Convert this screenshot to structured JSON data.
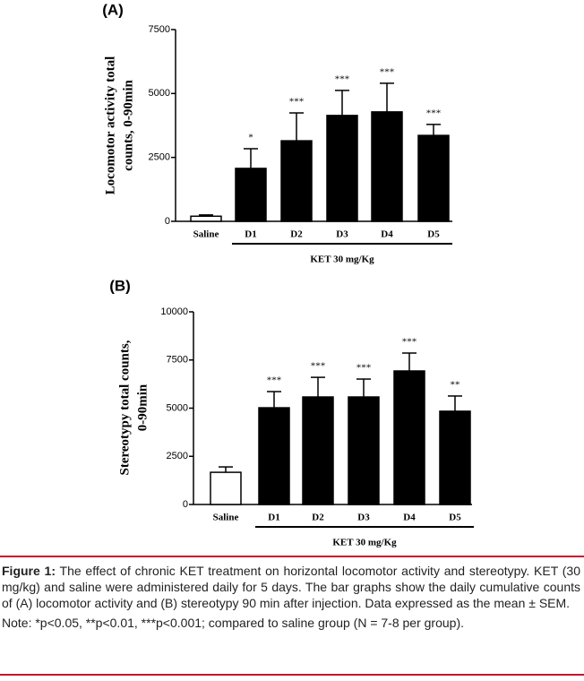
{
  "chart_data": [
    {
      "type": "bar",
      "panel": "(A)",
      "ylabel": [
        "Locomotor activity total",
        "counts, 0-90min"
      ],
      "categories": [
        "Saline",
        "D1",
        "D2",
        "D3",
        "D4",
        "D5"
      ],
      "values": [
        200,
        2070,
        3150,
        4140,
        4280,
        3360
      ],
      "errors": [
        50,
        770,
        1090,
        980,
        1120,
        430
      ],
      "annotations": [
        null,
        "*",
        "***",
        "***",
        "***",
        "***"
      ],
      "colors": [
        "#ffffff",
        "#000000",
        "#000000",
        "#000000",
        "#000000",
        "#000000"
      ],
      "group_label": "KET 30 mg/Kg",
      "ylim": [
        0,
        7500
      ],
      "yticks": [
        0,
        2500,
        5000,
        7500
      ]
    },
    {
      "type": "bar",
      "panel": "(B)",
      "ylabel": [
        "Stereotypy total counts,",
        "0-90min"
      ],
      "categories": [
        "Saline",
        "D1",
        "D2",
        "D3",
        "D4",
        "D5"
      ],
      "values": [
        1670,
        5020,
        5580,
        5580,
        6930,
        4840
      ],
      "errors": [
        280,
        840,
        1020,
        930,
        930,
        790
      ],
      "annotations": [
        null,
        "***",
        "***",
        "***",
        "***",
        "**"
      ],
      "colors": [
        "#ffffff",
        "#000000",
        "#000000",
        "#000000",
        "#000000",
        "#000000"
      ],
      "group_label": "KET 30 mg/Kg",
      "ylim": [
        0,
        10000
      ],
      "yticks": [
        0,
        2500,
        5000,
        7500,
        10000
      ]
    }
  ],
  "caption": {
    "label": "Figure 1:",
    "text": "The effect of chronic KET treatment on horizontal locomotor activity and stereotypy. KET (30 mg/kg) and saline were administered daily for 5 days. The bar graphs show the daily cumulative counts of (A) locomotor activity and (B) stereotypy 90 min after injection. Data expressed as the mean ± SEM.",
    "note": "Note: *p<0.05, **p<0.01, ***p<0.001; compared to saline group (N = 7-8 per group)."
  }
}
